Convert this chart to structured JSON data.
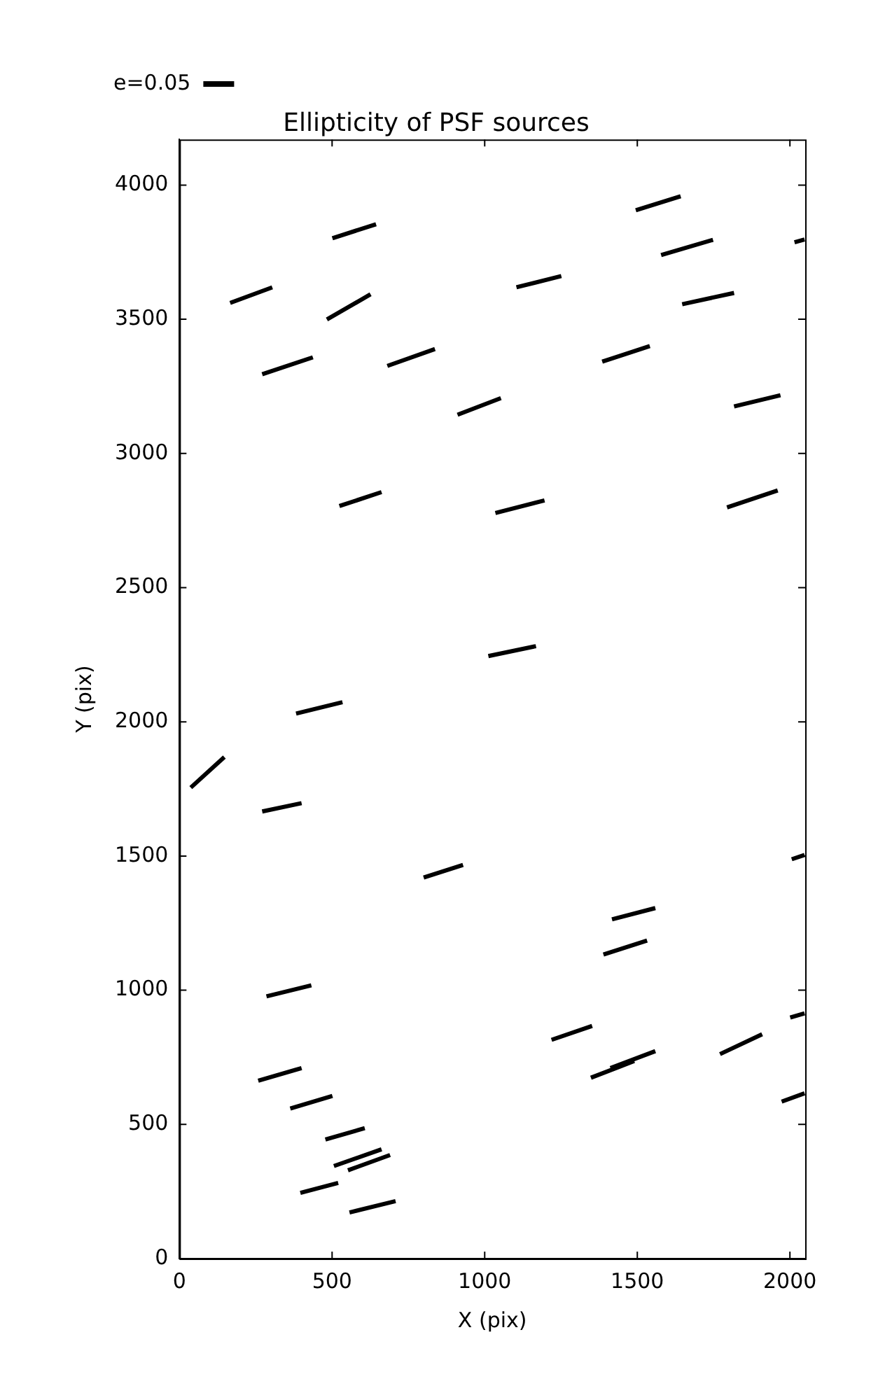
{
  "chart_data": {
    "type": "line",
    "title": "Ellipticity of PSF sources",
    "xlabel": "X (pix)",
    "ylabel": "Y (pix)",
    "xlim": [
      0,
      2050
    ],
    "xticks": [
      0,
      500,
      1000,
      1500,
      2000
    ],
    "ylim": [
      0,
      4170
    ],
    "yticks": [
      0,
      500,
      1000,
      1500,
      2000,
      2500,
      3000,
      3500,
      4000
    ],
    "grid": false,
    "legend": "top left",
    "marker": "none",
    "line_style": "solid",
    "series": [
      {
        "name": "e=0.05",
        "color": "#000000",
        "x": [
          501,
          644,
          null,
          166,
          304,
          null,
          483,
          626,
          null,
          271,
          437,
          null,
          681,
          837,
          null,
          911,
          1053,
          null,
          524,
          662,
          null,
          1012,
          1168,
          null,
          1495,
          1642,
          null,
          1578,
          1748,
          null,
          1104,
          1251,
          null,
          1647,
          1817,
          null,
          1385,
          1541,
          null,
          1817,
          1969,
          null,
          1035,
          1196,
          null,
          1794,
          1960,
          null,
          2015,
          2048,
          null,
          382,
          534,
          null,
          37,
          147,
          null,
          271,
          400,
          null,
          800,
          929,
          null,
          285,
          432,
          null,
          258,
          400,
          null,
          363,
          501,
          null,
          478,
          607,
          null,
          506,
          662,
          null,
          552,
          690,
          null,
          396,
          520,
          null,
          557,
          708,
          null,
          2006,
          2048,
          null,
          1417,
          1559,
          null,
          1389,
          1532,
          null,
          1219,
          1352,
          null,
          1348,
          1490,
          null,
          1412,
          1559,
          null,
          1771,
          1909,
          null,
          2001,
          2048,
          null,
          1973,
          2048
        ],
        "values": [
          3802,
          3854,
          null,
          3561,
          3619,
          null,
          3499,
          3593,
          null,
          3295,
          3358,
          null,
          3326,
          3389,
          null,
          3144,
          3206,
          null,
          2804,
          2856,
          null,
          2245,
          2282,
          null,
          3906,
          3958,
          null,
          3739,
          3796,
          null,
          3619,
          3661,
          null,
          3556,
          3598,
          null,
          3342,
          3400,
          null,
          3175,
          3217,
          null,
          2778,
          2825,
          null,
          2799,
          2862,
          null,
          3787,
          3797,
          null,
          2031,
          2073,
          null,
          1755,
          1869,
          null,
          1666,
          1697,
          null,
          1420,
          1467,
          null,
          977,
          1018,
          null,
          663,
          710,
          null,
          559,
          606,
          null,
          444,
          486,
          null,
          345,
          407,
          null,
          329,
          386,
          null,
          245,
          282,
          null,
          172,
          214,
          null,
          1488,
          1504,
          null,
          1264,
          1306,
          null,
          1133,
          1185,
          null,
          815,
          867,
          null,
          674,
          736,
          null,
          710,
          773,
          null,
          762,
          836,
          null,
          898,
          914,
          null,
          585,
          616
        ]
      }
    ]
  }
}
